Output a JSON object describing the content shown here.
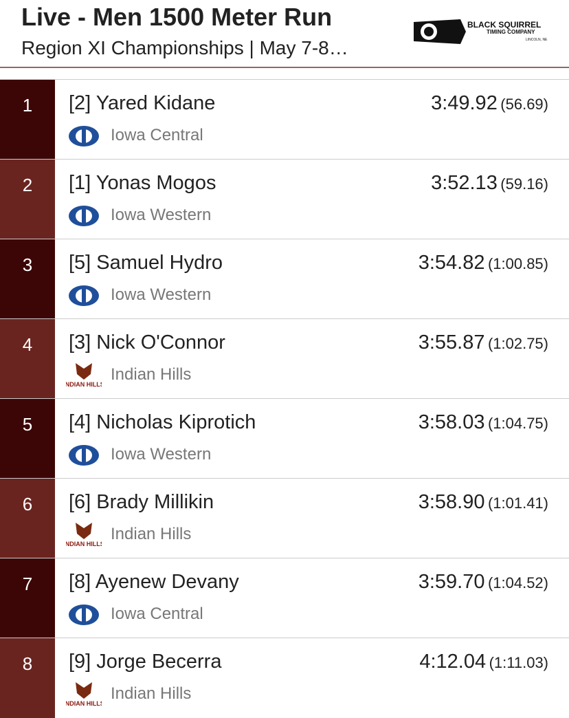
{
  "header": {
    "title": "Live - Men 1500 Meter Run",
    "subtitle": "Region XI Championships | May 7-8…",
    "logo": {
      "line1": "BLACK SQUIRREL",
      "line2": "TIMING COMPANY",
      "line3": "LINCOLN, NE"
    }
  },
  "rows": [
    {
      "place": 1,
      "name": "[2] Yared Kidane",
      "team": "Iowa Central",
      "time": "3:49.92",
      "split": "(56.69)"
    },
    {
      "place": 2,
      "name": "[1] Yonas Mogos",
      "team": "Iowa Western",
      "time": "3:52.13",
      "split": "(59.16)"
    },
    {
      "place": 3,
      "name": "[5] Samuel Hydro",
      "team": "Iowa Western",
      "time": "3:54.82",
      "split": "(1:00.85)"
    },
    {
      "place": 4,
      "name": "[3] Nick O'Connor",
      "team": "Indian Hills",
      "time": "3:55.87",
      "split": "(1:02.75)",
      "logo": "INDIAN HILLS"
    },
    {
      "place": 5,
      "name": "[4] Nicholas Kiprotich",
      "team": "Iowa Western",
      "time": "3:58.03",
      "split": "(1:04.75)"
    },
    {
      "place": 6,
      "name": "[6] Brady Millikin",
      "team": "Indian Hills",
      "time": "3:58.90",
      "split": "(1:01.41)",
      "logo": "INDIAN HILLS"
    },
    {
      "place": 7,
      "name": "[8] Ayenew Devany",
      "team": "Iowa Central",
      "time": "3:59.70",
      "split": "(1:04.52)"
    },
    {
      "place": 8,
      "name": "[9] Jorge Becerra",
      "team": "Indian Hills",
      "time": "4:12.04",
      "split": "(1:11.03)",
      "logo": "INDIAN HILLS"
    }
  ]
}
